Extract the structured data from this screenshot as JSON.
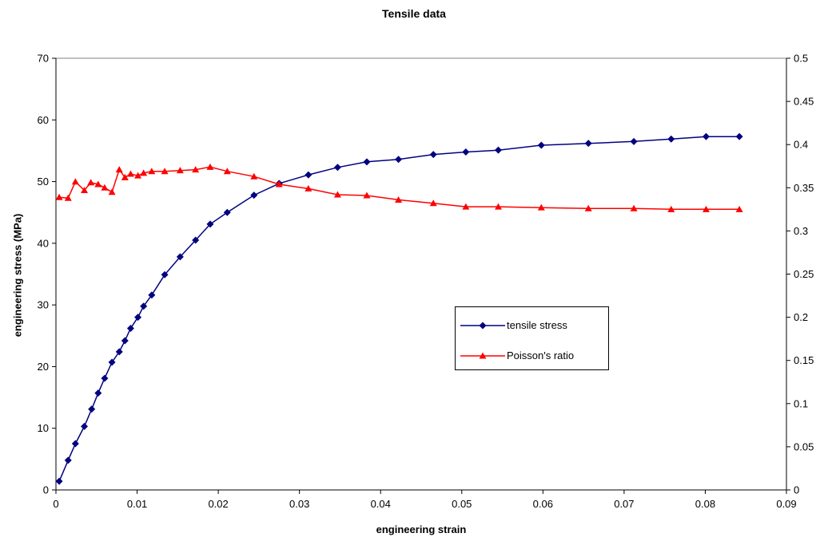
{
  "chart_data": {
    "type": "line",
    "title": "Tensile data",
    "xlabel": "engineering strain",
    "ylabel": "engineering stress (MPa)",
    "y2label": "",
    "xlim": [
      0,
      0.09
    ],
    "ylim": [
      0,
      70
    ],
    "y2lim": [
      0,
      0.5
    ],
    "x_ticks": [
      "0",
      "0.01",
      "0.02",
      "0.03",
      "0.04",
      "0.05",
      "0.06",
      "0.07",
      "0.08",
      "0.09"
    ],
    "y_ticks": [
      "0",
      "10",
      "20",
      "30",
      "40",
      "50",
      "60",
      "70"
    ],
    "y2_ticks": [
      "0",
      "0.05",
      "0.1",
      "0.15",
      "0.2",
      "0.25",
      "0.3",
      "0.35",
      "0.4",
      "0.45",
      "0.5"
    ],
    "grid": false,
    "legend_position": "center-right",
    "series": [
      {
        "name": "tensile stress",
        "axis": "left",
        "color": "#000080",
        "marker": "diamond",
        "x": [
          0.0004,
          0.0015,
          0.0024,
          0.0035,
          0.0044,
          0.0052,
          0.006,
          0.0069,
          0.0078,
          0.0085,
          0.0092,
          0.0101,
          0.0108,
          0.0118,
          0.0134,
          0.0153,
          0.0172,
          0.019,
          0.0211,
          0.0244,
          0.0275,
          0.0311,
          0.0347,
          0.0383,
          0.0422,
          0.0465,
          0.0505,
          0.0545,
          0.0598,
          0.0656,
          0.0712,
          0.0758,
          0.0801,
          0.0842
        ],
        "values": [
          1.4,
          4.8,
          7.5,
          10.3,
          13.1,
          15.7,
          18.1,
          20.7,
          22.4,
          24.2,
          26.2,
          28.0,
          29.8,
          31.6,
          34.9,
          37.8,
          40.5,
          43.1,
          45.0,
          47.8,
          49.7,
          51.1,
          52.3,
          53.2,
          53.6,
          54.4,
          54.8,
          55.1,
          55.9,
          56.2,
          56.5,
          56.9,
          57.3,
          57.3
        ]
      },
      {
        "name": "Poisson's ratio",
        "axis": "right",
        "color": "#ff0000",
        "marker": "triangle",
        "x": [
          0.0004,
          0.0015,
          0.0024,
          0.0035,
          0.0043,
          0.0052,
          0.006,
          0.0069,
          0.0078,
          0.0085,
          0.0092,
          0.0101,
          0.0108,
          0.0118,
          0.0134,
          0.0153,
          0.0172,
          0.019,
          0.0211,
          0.0244,
          0.0275,
          0.0311,
          0.0347,
          0.0383,
          0.0422,
          0.0465,
          0.0505,
          0.0545,
          0.0598,
          0.0656,
          0.0712,
          0.0758,
          0.0801,
          0.0842
        ],
        "values": [
          0.339,
          0.338,
          0.357,
          0.347,
          0.356,
          0.354,
          0.35,
          0.345,
          0.371,
          0.362,
          0.366,
          0.364,
          0.367,
          0.369,
          0.369,
          0.37,
          0.371,
          0.374,
          0.369,
          0.363,
          0.354,
          0.349,
          0.342,
          0.341,
          0.336,
          0.332,
          0.328,
          0.328,
          0.327,
          0.326,
          0.326,
          0.325,
          0.325,
          0.325
        ]
      }
    ]
  }
}
